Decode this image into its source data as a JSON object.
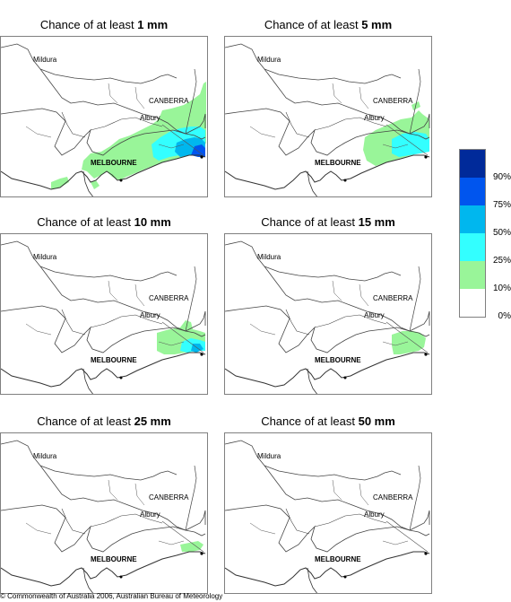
{
  "panels": [
    {
      "title_prefix": "Chance of at least ",
      "amount": "1 mm"
    },
    {
      "title_prefix": "Chance of at least ",
      "amount": "5 mm"
    },
    {
      "title_prefix": "Chance of at least ",
      "amount": "10 mm"
    },
    {
      "title_prefix": "Chance of at least ",
      "amount": "15 mm"
    },
    {
      "title_prefix": "Chance of at least ",
      "amount": "25 mm"
    },
    {
      "title_prefix": "Chance of at least ",
      "amount": "50 mm"
    }
  ],
  "cities": {
    "mildura": "Mildura",
    "canberra": "CANBERRA",
    "albury": "Albury",
    "melbourne": "MELBOURNE"
  },
  "legend": {
    "colors": [
      "#002a9a",
      "#0055ee",
      "#00b7ee",
      "#33ffff",
      "#99f599",
      "#ffffff"
    ],
    "labels": [
      "90%",
      "75%",
      "50%",
      "25%",
      "10%",
      "0%"
    ]
  },
  "copyright": "© Commonwealth of Australia 2006, Australian Bureau of Meteorology"
}
